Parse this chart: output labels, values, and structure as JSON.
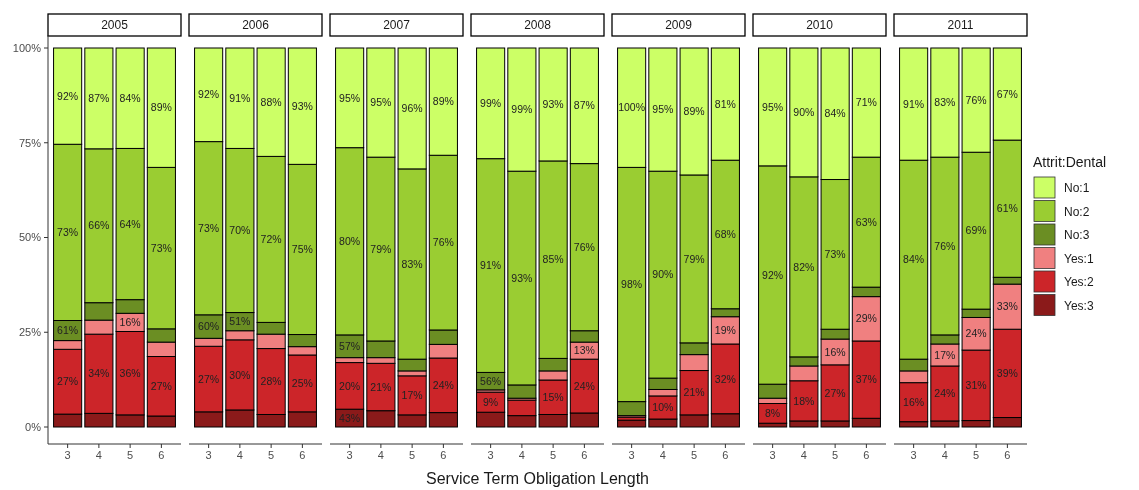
{
  "chart_data": [
    {
      "type": "bar",
      "title": "2005",
      "stacked": true,
      "categories": [
        "3",
        "4",
        "5",
        "6"
      ],
      "ylim": [
        0,
        100
      ],
      "yticks": [
        {
          "value": 0,
          "label": "0%"
        },
        {
          "value": 25,
          "label": "25%"
        },
        {
          "value": 50,
          "label": "50%"
        },
        {
          "value": 75,
          "label": "75%"
        },
        {
          "value": 100,
          "label": "100%"
        }
      ],
      "series": [
        {
          "color": "#8b1a1a",
          "values": [
            3.4,
            3.6,
            3.2,
            2.9
          ]
        },
        {
          "color": "#cc2529",
          "values": [
            17.1,
            20.9,
            22.0,
            15.7
          ]
        },
        {
          "color": "#f08080",
          "values": [
            2.3,
            3.7,
            4.8,
            3.8
          ]
        },
        {
          "color": "#6b8e23",
          "values": [
            5.3,
            4.6,
            3.6,
            3.5
          ]
        },
        {
          "color": "#9acd32",
          "values": [
            46.5,
            40.6,
            39.9,
            42.6
          ]
        },
        {
          "color": "#ccff66",
          "values": [
            25.4,
            26.6,
            26.5,
            31.5
          ]
        }
      ],
      "annotations": [
        "27%",
        "61%",
        "73%",
        "92%",
        "34%",
        "66%",
        "87%",
        "36%",
        "16%",
        "64%",
        "84%",
        "27%",
        "73%",
        "89%"
      ]
    },
    {
      "type": "bar",
      "title": "2006",
      "stacked": true,
      "tick_labels": "x",
      "categories": [
        "3",
        "4",
        "5",
        "6"
      ],
      "ylim": [
        0,
        100
      ],
      "series": [
        {
          "color": "#8b1a1a",
          "values": [
            4.0,
            4.5,
            3.3,
            4.0
          ]
        },
        {
          "color": "#cc2529",
          "values": [
            17.3,
            18.5,
            17.4,
            15.0
          ]
        },
        {
          "color": "#f08080",
          "values": [
            2.1,
            2.4,
            3.8,
            2.2
          ]
        },
        {
          "color": "#6b8e23",
          "values": [
            6.2,
            4.8,
            3.1,
            3.2
          ]
        },
        {
          "color": "#9acd32",
          "values": [
            45.7,
            43.3,
            43.8,
            44.9
          ]
        },
        {
          "color": "#ccff66",
          "values": [
            24.7,
            26.5,
            28.6,
            30.7
          ]
        }
      ],
      "annotations": [
        "27%",
        "60%",
        "73%",
        "92%",
        "30%",
        "51%",
        "70%",
        "91%",
        "28%",
        "72%",
        "88%",
        "25%",
        "75%",
        "93%"
      ]
    },
    {
      "type": "bar",
      "title": "2007",
      "stacked": true,
      "tick_labels": "x",
      "categories": [
        "3",
        "4",
        "5",
        "6"
      ],
      "ylim": [
        0,
        100
      ],
      "series": [
        {
          "color": "#8b1a1a",
          "values": [
            4.7,
            4.3,
            3.2,
            3.8
          ]
        },
        {
          "color": "#cc2529",
          "values": [
            12.3,
            12.5,
            10.3,
            14.4
          ]
        },
        {
          "color": "#f08080",
          "values": [
            1.3,
            1.5,
            1.3,
            3.6
          ]
        },
        {
          "color": "#6b8e23",
          "values": [
            6.0,
            4.4,
            3.1,
            3.8
          ]
        },
        {
          "color": "#9acd32",
          "values": [
            49.4,
            48.5,
            50.2,
            46.1
          ]
        },
        {
          "color": "#ccff66",
          "values": [
            26.3,
            28.8,
            31.9,
            28.3
          ]
        }
      ],
      "annotations": [
        "43%",
        "20%",
        "57%",
        "80%",
        "95%",
        "21%",
        "79%",
        "95%",
        "17%",
        "83%",
        "96%",
        "24%",
        "76%",
        "89%"
      ]
    },
    {
      "type": "bar",
      "title": "2008",
      "xlabel": "Service Term Obligation Length",
      "stacked": true,
      "tick_labels": "x",
      "categories": [
        "3",
        "4",
        "5",
        "6"
      ],
      "ylim": [
        0,
        100
      ],
      "series": [
        {
          "color": "#8b1a1a",
          "values": [
            3.9,
            3.0,
            3.3,
            3.7
          ]
        },
        {
          "color": "#cc2529",
          "values": [
            5.3,
            4.1,
            9.1,
            14.2
          ]
        },
        {
          "color": "#f08080",
          "values": [
            0.6,
            0.5,
            2.4,
            4.5
          ]
        },
        {
          "color": "#6b8e23",
          "values": [
            4.6,
            3.5,
            3.3,
            3.0
          ]
        },
        {
          "color": "#9acd32",
          "values": [
            56.4,
            56.4,
            52.1,
            44.1
          ]
        },
        {
          "color": "#ccff66",
          "values": [
            29.2,
            32.5,
            29.8,
            30.5
          ]
        }
      ],
      "annotations": [
        "9%",
        "56%",
        "91%",
        "99%",
        "93%",
        "99%",
        "15%",
        "85%",
        "93%",
        "24%",
        "13%",
        "76%",
        "87%"
      ]
    },
    {
      "type": "bar",
      "title": "2009",
      "stacked": true,
      "tick_labels": "x",
      "categories": [
        "3",
        "4",
        "5",
        "6"
      ],
      "ylim": [
        0,
        100
      ],
      "series": [
        {
          "color": "#8b1a1a",
          "values": [
            1.8,
            2.1,
            3.2,
            3.5
          ]
        },
        {
          "color": "#cc2529",
          "values": [
            0.8,
            6.1,
            11.7,
            18.4
          ]
        },
        {
          "color": "#f08080",
          "values": [
            0.4,
            1.7,
            4.2,
            7.2
          ]
        },
        {
          "color": "#6b8e23",
          "values": [
            3.7,
            3.0,
            3.1,
            2.1
          ]
        },
        {
          "color": "#9acd32",
          "values": [
            61.8,
            54.6,
            44.3,
            39.2
          ]
        },
        {
          "color": "#ccff66",
          "values": [
            31.5,
            32.5,
            33.5,
            29.6
          ]
        }
      ],
      "annotations": [
        "98%",
        "100%",
        "10%",
        "90%",
        "95%",
        "21%",
        "79%",
        "89%",
        "32%",
        "19%",
        "68%",
        "81%"
      ]
    },
    {
      "type": "bar",
      "title": "2010",
      "stacked": true,
      "tick_labels": "x",
      "categories": [
        "3",
        "4",
        "5",
        "6"
      ],
      "ylim": [
        0,
        100
      ],
      "series": [
        {
          "color": "#8b1a1a",
          "values": [
            1.0,
            1.6,
            1.6,
            2.3
          ]
        },
        {
          "color": "#cc2529",
          "values": [
            5.2,
            10.6,
            14.8,
            20.4
          ]
        },
        {
          "color": "#f08080",
          "values": [
            1.4,
            3.9,
            6.8,
            11.7
          ]
        },
        {
          "color": "#6b8e23",
          "values": [
            3.7,
            2.4,
            2.6,
            2.5
          ]
        },
        {
          "color": "#9acd32",
          "values": [
            57.6,
            47.5,
            39.5,
            34.3
          ]
        },
        {
          "color": "#ccff66",
          "values": [
            31.1,
            34.0,
            34.7,
            28.8
          ]
        }
      ],
      "annotations": [
        "8%",
        "92%",
        "95%",
        "18%",
        "82%",
        "90%",
        "27%",
        "16%",
        "73%",
        "84%",
        "37%",
        "29%",
        "63%",
        "71%"
      ]
    },
    {
      "type": "bar",
      "title": "2011",
      "stacked": true,
      "tick_labels": "x",
      "legend": "right",
      "legend_title": "Attrit:Dental",
      "categories": [
        "3",
        "4",
        "5",
        "6"
      ],
      "ylim": [
        0,
        100
      ],
      "series": [
        {
          "name": "Yes:3",
          "color": "#8b1a1a",
          "values": [
            1.4,
            1.6,
            1.7,
            2.5
          ]
        },
        {
          "name": "Yes:2",
          "color": "#cc2529",
          "values": [
            10.3,
            14.5,
            18.6,
            23.3
          ]
        },
        {
          "name": "Yes:1",
          "color": "#f08080",
          "values": [
            3.1,
            5.8,
            8.6,
            11.9
          ]
        },
        {
          "name": "No:3",
          "color": "#6b8e23",
          "values": [
            3.1,
            2.4,
            2.2,
            1.8
          ]
        },
        {
          "name": "No:2",
          "color": "#9acd32",
          "values": [
            52.5,
            46.9,
            41.4,
            36.2
          ]
        },
        {
          "name": "No:1",
          "color": "#ccff66",
          "values": [
            29.6,
            28.8,
            27.5,
            24.3
          ]
        }
      ],
      "annotations": [
        "16%",
        "84%",
        "91%",
        "24%",
        "17%",
        "76%",
        "83%",
        "31%",
        "24%",
        "69%",
        "76%",
        "39%",
        "33%",
        "61%",
        "67%"
      ]
    }
  ]
}
